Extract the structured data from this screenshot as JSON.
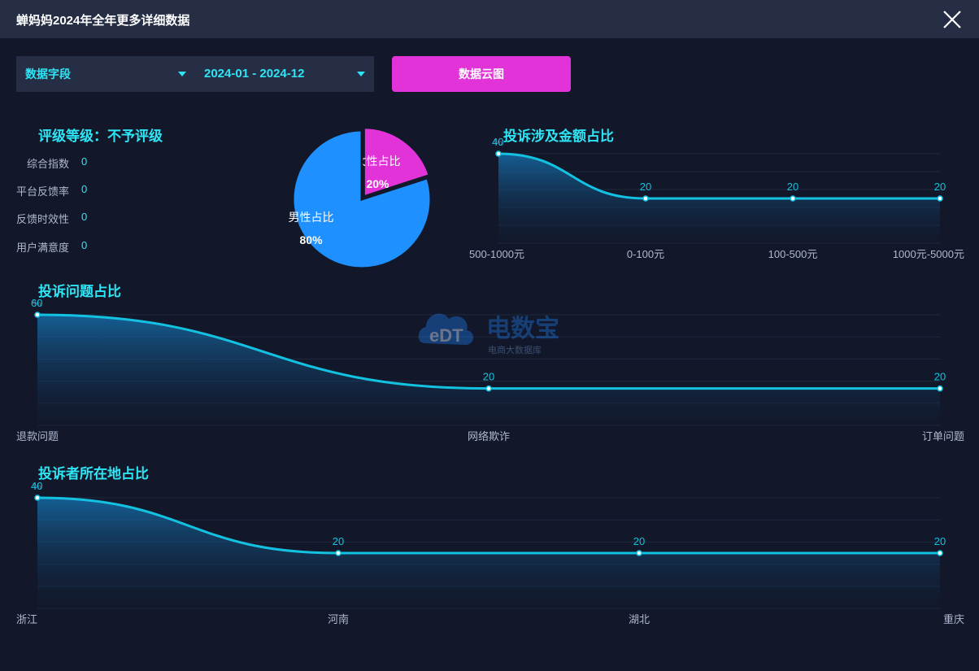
{
  "window": {
    "title": "蝉妈妈2024年全年更多详细数据",
    "close_icon": "close-icon"
  },
  "toolbar": {
    "field_select": "数据字段",
    "date_range": "2024-01 - 2024-12",
    "cloud_button": "数据云图"
  },
  "rating": {
    "title": "评级等级：不予评级",
    "metrics": [
      {
        "label": "综合指数",
        "value": "0"
      },
      {
        "label": "平台反馈率",
        "value": "0"
      },
      {
        "label": "反馈时效性",
        "value": "0"
      },
      {
        "label": "用户满意度",
        "value": "0"
      }
    ]
  },
  "watermark": {
    "brand": "电数宝",
    "subtitle": "电商大数据库",
    "logo_text": "eDT"
  },
  "colors": {
    "male": "#1e90ff",
    "female": "#e233d9",
    "line": "#13c2e0",
    "accent": "#2ee5f5"
  },
  "chart_data": [
    {
      "id": "gender",
      "type": "pie",
      "categories": [
        "女性占比",
        "男性占比"
      ],
      "values": [
        20,
        80
      ],
      "labels": [
        "20%",
        "80%"
      ]
    },
    {
      "id": "amount",
      "type": "area",
      "title": "投诉涉及金额占比",
      "ylabel": "%",
      "categories": [
        "500-1000元",
        "0-100元",
        "100-500元",
        "1000元-5000元"
      ],
      "values": [
        40,
        20,
        20,
        20
      ],
      "ylim": [
        0,
        40
      ]
    },
    {
      "id": "issue",
      "type": "area",
      "title": "投诉问题占比",
      "ylabel": "%",
      "categories": [
        "退款问题",
        "网络欺诈",
        "订单问题"
      ],
      "values": [
        60,
        20,
        20
      ],
      "ylim": [
        0,
        60
      ]
    },
    {
      "id": "region",
      "type": "area",
      "title": "投诉者所在地占比",
      "ylabel": "%",
      "categories": [
        "浙江",
        "河南",
        "湖北",
        "重庆"
      ],
      "values": [
        40,
        20,
        20,
        20
      ],
      "ylim": [
        0,
        40
      ]
    }
  ]
}
